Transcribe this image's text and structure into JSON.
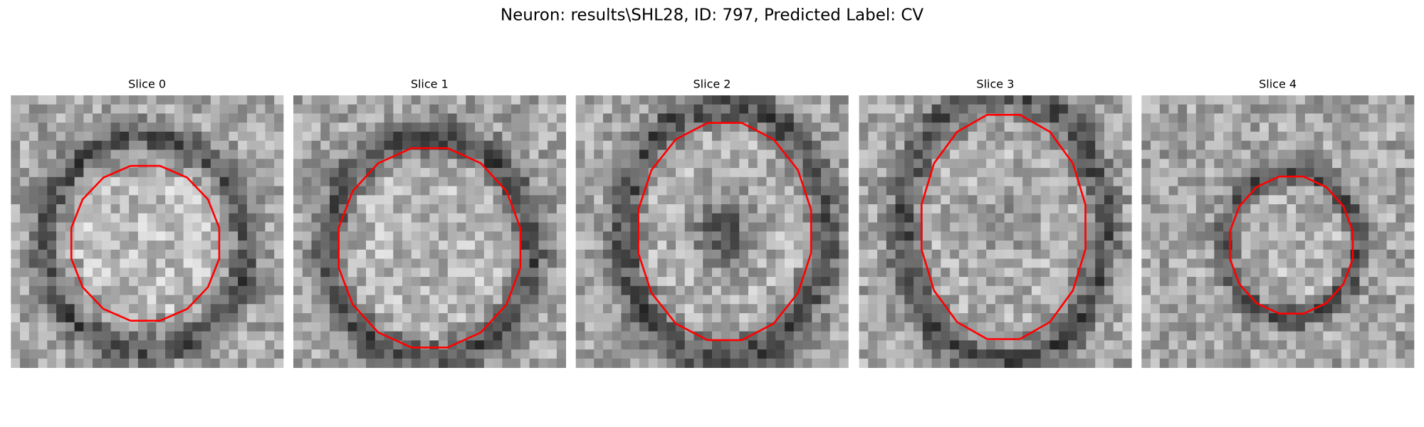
{
  "title": "Neuron: results\\SHL28, ID: 797, Predicted Label: CV",
  "panels": [
    {
      "title": "Slice 0"
    },
    {
      "title": "Slice 1"
    },
    {
      "title": "Slice 2"
    },
    {
      "title": "Slice 3"
    },
    {
      "title": "Slice 4"
    }
  ]
}
